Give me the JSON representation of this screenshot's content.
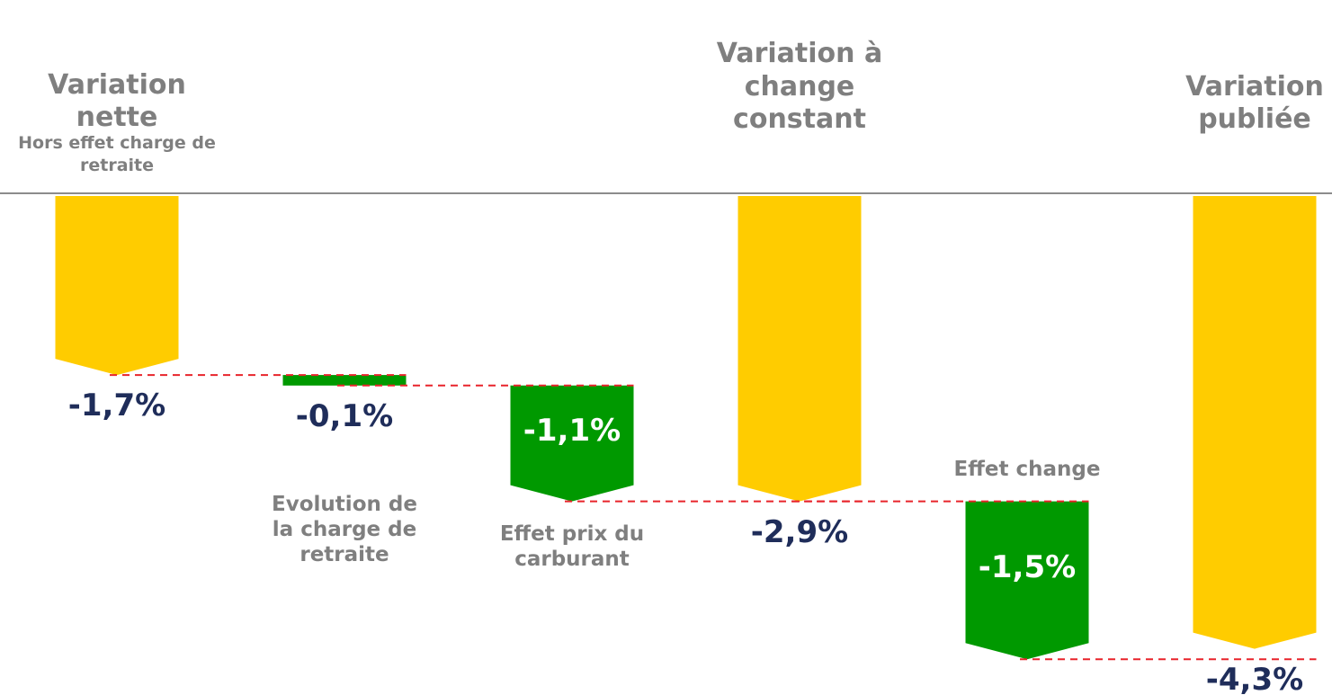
{
  "chart_data": {
    "type": "waterfall",
    "categories": [
      "Variation nette",
      "Evolution de la charge de retraite",
      "Effet prix du carburant",
      "Variation à change constant",
      "Effet change",
      "Variation publiée"
    ],
    "annotation": "Hors effet charge de retraite",
    "values": [
      -1.7,
      -0.1,
      -1.1,
      -2.9,
      -1.5,
      -4.3
    ],
    "value_labels": [
      "-1,7%",
      "-0,1%",
      "-1,1%",
      "-2,9%",
      "-1,5%",
      "-4,3%"
    ],
    "bar_kinds": [
      "total",
      "change",
      "change",
      "total",
      "change",
      "total"
    ],
    "colors": {
      "total": "#ffcc00",
      "change": "#009900"
    },
    "ylim": [
      -4.5,
      0
    ]
  }
}
